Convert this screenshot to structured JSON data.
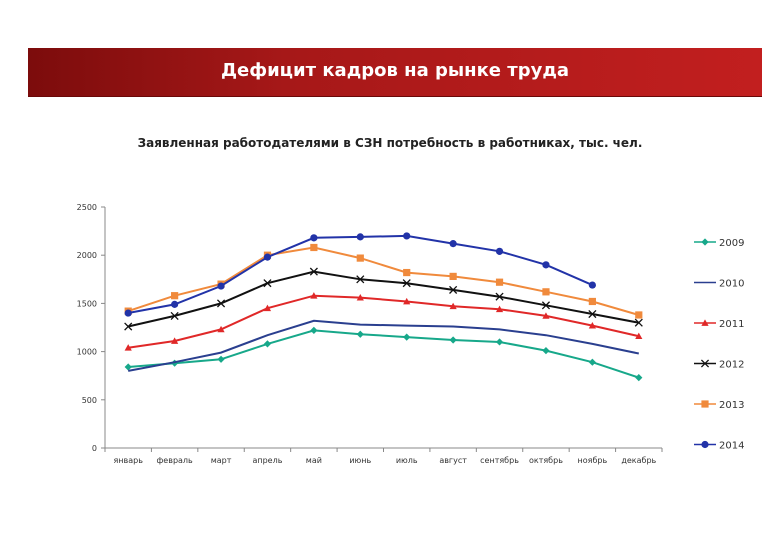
{
  "header": {
    "title": "Дефицит кадров на рынке труда"
  },
  "chart_data": {
    "type": "line",
    "title": "Заявленная работодателями в СЗН потребность в работниках, тыс. чел.",
    "xlabel": "",
    "ylabel": "",
    "ylim": [
      0,
      2500
    ],
    "yticks": [
      0,
      500,
      1000,
      1500,
      2000,
      2500
    ],
    "grid": false,
    "legend_position": "right",
    "categories": [
      "январь",
      "февраль",
      "март",
      "апрель",
      "май",
      "июнь",
      "июль",
      "август",
      "сентябрь",
      "октябрь",
      "ноябрь",
      "декабрь"
    ],
    "series": [
      {
        "name": "2009",
        "color": "#17a88a",
        "marker": "diamond",
        "values": [
          840,
          880,
          920,
          1080,
          1220,
          1180,
          1150,
          1120,
          1100,
          1010,
          890,
          730
        ]
      },
      {
        "name": "2010",
        "color": "#2a3f8f",
        "marker": "none",
        "values": [
          800,
          890,
          990,
          1170,
          1320,
          1280,
          1270,
          1260,
          1230,
          1170,
          1080,
          980
        ]
      },
      {
        "name": "2011",
        "color": "#e02828",
        "marker": "triangle",
        "values": [
          1040,
          1110,
          1230,
          1450,
          1580,
          1560,
          1520,
          1470,
          1440,
          1370,
          1270,
          1160
        ]
      },
      {
        "name": "2012",
        "color": "#111111",
        "marker": "x",
        "values": [
          1260,
          1370,
          1500,
          1710,
          1830,
          1750,
          1710,
          1640,
          1570,
          1480,
          1390,
          1300
        ]
      },
      {
        "name": "2013",
        "color": "#f08a3c",
        "marker": "square",
        "values": [
          1420,
          1580,
          1700,
          2000,
          2080,
          1970,
          1820,
          1780,
          1720,
          1620,
          1520,
          1380
        ]
      },
      {
        "name": "2014",
        "color": "#2233a8",
        "marker": "circle",
        "values": [
          1400,
          1490,
          1680,
          1980,
          2180,
          2190,
          2200,
          2120,
          2040,
          1900,
          1690,
          null
        ]
      }
    ]
  }
}
